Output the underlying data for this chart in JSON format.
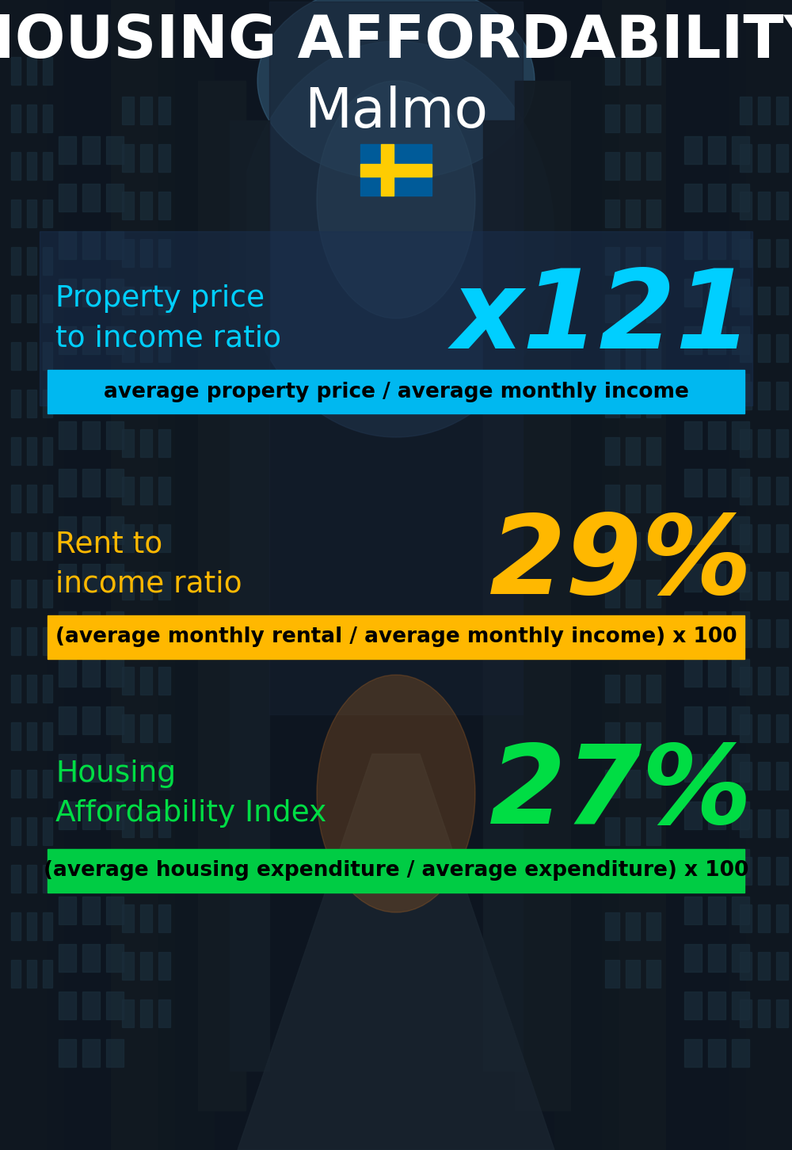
{
  "title_line1": "HOUSING AFFORDABILITY",
  "title_line2": "Malmo",
  "bg_color": "#0d1520",
  "section1_label": "Property price\nto income ratio",
  "section1_value": "x121",
  "section1_label_color": "#00cfff",
  "section1_value_color": "#00cfff",
  "section1_formula": "average property price / average monthly income",
  "section1_formula_bg": "#00b8f0",
  "section1_formula_color": "#000000",
  "section1_panel_color": "#1a3050",
  "section1_panel_alpha": 0.5,
  "section2_label": "Rent to\nincome ratio",
  "section2_value": "29%",
  "section2_label_color": "#FFB800",
  "section2_value_color": "#FFB800",
  "section2_formula": "(average monthly rental / average monthly income) x 100",
  "section2_formula_bg": "#FFB800",
  "section2_formula_color": "#000000",
  "section3_label": "Housing\nAffordability Index",
  "section3_value": "27%",
  "section3_label_color": "#00dd44",
  "section3_value_color": "#00dd44",
  "section3_formula": "(average housing expenditure / average expenditure) x 100",
  "section3_formula_bg": "#00cc44",
  "section3_formula_color": "#000000",
  "title_color": "#ffffff",
  "title_fontsize": 54,
  "subtitle_fontsize": 50,
  "label_fontsize": 27,
  "value_fontsize": 100,
  "formula_fontsize": 19
}
